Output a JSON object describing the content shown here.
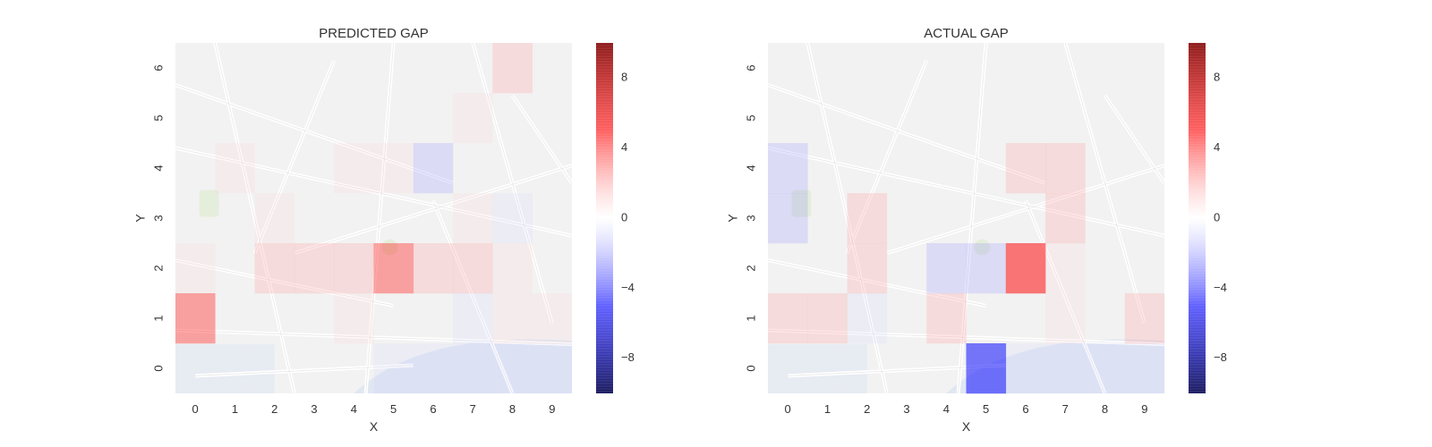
{
  "chart_data": [
    {
      "type": "heatmap",
      "title": "PREDICTED GAP",
      "xlabel": "X",
      "ylabel": "Y",
      "x_ticks": [
        "0",
        "1",
        "2",
        "3",
        "4",
        "5",
        "6",
        "7",
        "8",
        "9"
      ],
      "y_ticks": [
        "0",
        "1",
        "2",
        "3",
        "4",
        "5",
        "6"
      ],
      "background": "faded street map",
      "colormap": "seismic",
      "vmin": -10,
      "vmax": 10,
      "colorbar_ticks": [
        "8",
        "4",
        "0",
        "−4",
        "−8"
      ],
      "grid": false,
      "values_y_top_to_bottom": [
        [
          0,
          0,
          0,
          0,
          0,
          0,
          0,
          0,
          2,
          0
        ],
        [
          0,
          0,
          0,
          0,
          0,
          0,
          0,
          1,
          0,
          0
        ],
        [
          0,
          1,
          0,
          0,
          1,
          1,
          -2,
          0,
          0,
          0
        ],
        [
          0,
          0,
          1,
          0,
          0,
          0,
          0,
          1,
          -1,
          0
        ],
        [
          1,
          0,
          2,
          2,
          2,
          4,
          2,
          2,
          1,
          0
        ],
        [
          4,
          0,
          0,
          0,
          1,
          0,
          0,
          -1,
          1,
          1
        ],
        [
          0,
          0,
          0,
          0,
          0,
          -1,
          -1,
          -1,
          -1,
          -1
        ]
      ]
    },
    {
      "type": "heatmap",
      "title": "ACTUAL GAP",
      "xlabel": "X",
      "ylabel": "Y",
      "x_ticks": [
        "0",
        "1",
        "2",
        "3",
        "4",
        "5",
        "6",
        "7",
        "8",
        "9"
      ],
      "y_ticks": [
        "0",
        "1",
        "2",
        "3",
        "4",
        "5",
        "6"
      ],
      "background": "faded street map",
      "colormap": "seismic",
      "vmin": -10,
      "vmax": 10,
      "colorbar_ticks": [
        "8",
        "4",
        "0",
        "−4",
        "−8"
      ],
      "grid": false,
      "values_y_top_to_bottom": [
        [
          0,
          0,
          0,
          0,
          0,
          0,
          0,
          0,
          0,
          0
        ],
        [
          0,
          0,
          0,
          0,
          0,
          0,
          0,
          0,
          0,
          0
        ],
        [
          -2,
          0,
          0,
          0,
          0,
          0,
          2,
          2,
          0,
          0
        ],
        [
          -2,
          0,
          2,
          0,
          0,
          0,
          0,
          2,
          0,
          0
        ],
        [
          0,
          0,
          2,
          0,
          -2,
          -2,
          5,
          1,
          0,
          0
        ],
        [
          2,
          2,
          -1,
          0,
          2,
          0,
          0,
          1,
          0,
          2
        ],
        [
          0,
          0,
          0,
          0,
          0,
          -5,
          -1,
          -1,
          -1,
          -1
        ]
      ]
    }
  ]
}
